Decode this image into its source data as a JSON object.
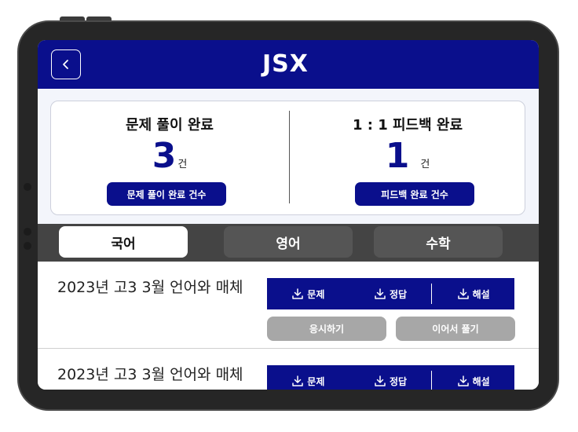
{
  "header": {
    "logo": "JSX",
    "back_icon": "chevron-left-icon",
    "brand_color": "#0a0f8c"
  },
  "summary": {
    "left": {
      "title": "문제 풀이 완료",
      "count": "3",
      "unit": "건",
      "button": "문제 풀이 완료 건수"
    },
    "right": {
      "title": "1 : 1 피드백 완료",
      "count": "1",
      "unit": "건",
      "button": "피드백 완료 건수"
    }
  },
  "tabs": [
    {
      "label": "국어",
      "active": true
    },
    {
      "label": "영어",
      "active": false
    },
    {
      "label": "수학",
      "active": false
    }
  ],
  "items": [
    {
      "title": "2023년 고3 3월 언어와 매체",
      "downloads": [
        "문제",
        "정답",
        "해설"
      ],
      "actions": [
        "응시하기",
        "이어서 풀기"
      ]
    },
    {
      "title": "2023년 고3 3월 언어와 매체",
      "downloads": [
        "문제",
        "정답",
        "해설"
      ]
    }
  ]
}
